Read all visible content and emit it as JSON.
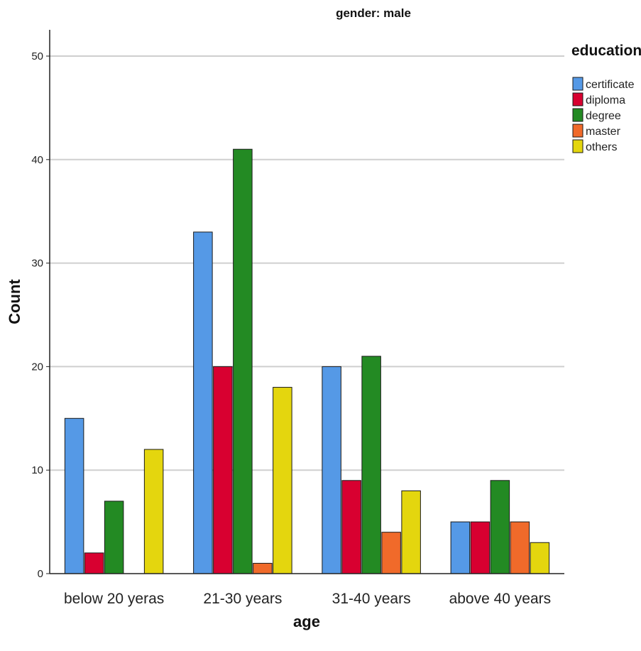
{
  "chart_data": {
    "type": "bar",
    "title": "gender: male",
    "xlabel": "age",
    "ylabel": "Count",
    "categories": [
      "below 20 yeras",
      "21-30 years",
      "31-40 years",
      "above 40 years"
    ],
    "legend_title": "education",
    "legend_position": "right",
    "ylim": [
      0,
      52
    ],
    "yticks": [
      0,
      10,
      20,
      30,
      40,
      50
    ],
    "grid": true,
    "series": [
      {
        "name": "certificate",
        "color": "#5599e6",
        "values": [
          15,
          33,
          20,
          5
        ]
      },
      {
        "name": "diploma",
        "color": "#d80030",
        "values": [
          2,
          20,
          9,
          5
        ]
      },
      {
        "name": "degree",
        "color": "#238a23",
        "values": [
          7,
          41,
          21,
          9
        ]
      },
      {
        "name": "master",
        "color": "#f06a2a",
        "values": [
          null,
          1,
          4,
          5
        ]
      },
      {
        "name": "others",
        "color": "#e4d60e",
        "values": [
          12,
          18,
          8,
          3
        ]
      }
    ]
  }
}
